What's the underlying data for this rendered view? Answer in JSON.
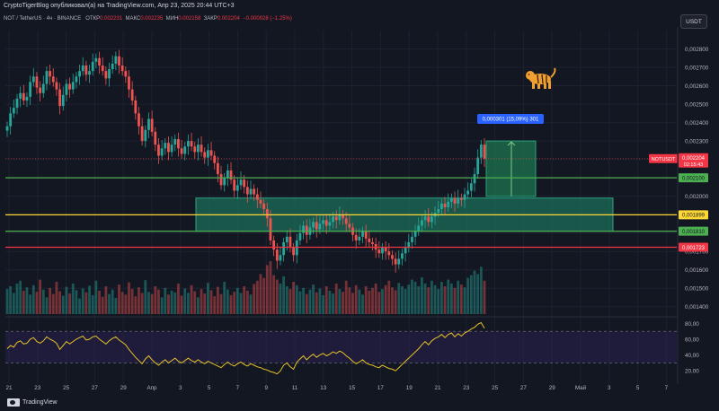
{
  "header": {
    "title": "CryptoTigerBlog опубликовал(а) на TradingView.com, Апр 23, 2025 20:44 UTC+3"
  },
  "info": {
    "symbol": "NOT / TetherUS · 4ч · BINANCE",
    "open_label": "ОТКР",
    "open": "0.002231",
    "high_label": "МАКС",
    "high": "0.002235",
    "low_label": "МИН",
    "low": "0.002158",
    "close_label": "ЗАКР",
    "close": "0.002204",
    "change": "−0.000028 (−1.25%)"
  },
  "currency_button": "USDT",
  "brand": "TradingView",
  "colors": {
    "background": "#131722",
    "up": "#26a69a",
    "down": "#ef5350",
    "green_line": "#4caf50",
    "yellow_line": "#fdd835",
    "red_line": "#f23645",
    "zone": "#1e6e5a",
    "rsi_line": "#e6c229",
    "label_blue": "#2962ff"
  },
  "chart_data": {
    "type": "candlestick",
    "ylim": [
      0.00135,
      0.0029
    ],
    "y_ticks": [
      "0.002800",
      "0.002700",
      "0.002600",
      "0.002500",
      "0.002400",
      "0.002300",
      "0.002200",
      "0.002100",
      "0.002000",
      "0.001900",
      "0.001800",
      "0.001700",
      "0.001600",
      "0.001500",
      "0.001400"
    ],
    "x_ticks": [
      "21",
      "23",
      "25",
      "27",
      "29",
      "Апр",
      "3",
      "5",
      "7",
      "9",
      "11",
      "13",
      "15",
      "17",
      "19",
      "21",
      "23",
      "25",
      "27",
      "29",
      "Май",
      "3",
      "5",
      "7"
    ],
    "horizontal_levels": [
      {
        "value": 0.0021,
        "label": "0,002100",
        "color": "#4caf50"
      },
      {
        "value": 0.001899,
        "label": "0,001899",
        "color": "#fdd835"
      },
      {
        "value": 0.00181,
        "label": "0,001810",
        "color": "#4caf50"
      },
      {
        "value": 0.001723,
        "label": "0,001723",
        "color": "#f23645"
      }
    ],
    "price_label": {
      "symbol": "NOTUSDT",
      "value": "0,002204",
      "timer": "02:15:43"
    },
    "measure_label": "0,000301 (15,09%) 301",
    "zone": {
      "top": 0.00199,
      "bottom": 0.00181
    },
    "rsi": {
      "levels": [
        "80,00",
        "60,00",
        "40,00",
        "20,00"
      ],
      "ylim": [
        10,
        85
      ],
      "band": [
        30,
        70
      ]
    },
    "closes": [
      0.00238,
      0.00245,
      0.00248,
      0.00253,
      0.00256,
      0.00252,
      0.00254,
      0.00262,
      0.00265,
      0.00259,
      0.00256,
      0.00261,
      0.00268,
      0.00265,
      0.00262,
      0.00258,
      0.00249,
      0.00255,
      0.00261,
      0.00258,
      0.00262,
      0.00265,
      0.00268,
      0.00271,
      0.00266,
      0.00268,
      0.00273,
      0.00275,
      0.00271,
      0.00268,
      0.00264,
      0.00269,
      0.00272,
      0.00276,
      0.00271,
      0.00268,
      0.00265,
      0.00258,
      0.00252,
      0.00245,
      0.00238,
      0.0023,
      0.00236,
      0.00242,
      0.00235,
      0.00228,
      0.00222,
      0.00226,
      0.00229,
      0.00224,
      0.00228,
      0.00231,
      0.00226,
      0.00223,
      0.00227,
      0.0023,
      0.00227,
      0.00224,
      0.00228,
      0.00224,
      0.00221,
      0.00225,
      0.00222,
      0.00218,
      0.00212,
      0.00206,
      0.0021,
      0.00214,
      0.00209,
      0.00203,
      0.00206,
      0.00209,
      0.00205,
      0.00201,
      0.00204,
      0.00201,
      0.00198,
      0.00196,
      0.00193,
      0.00188,
      0.00176,
      0.00171,
      0.00165,
      0.00168,
      0.00175,
      0.00178,
      0.00172,
      0.00168,
      0.00176,
      0.0018,
      0.00184,
      0.00179,
      0.00183,
      0.00186,
      0.00182,
      0.00185,
      0.00187,
      0.00184,
      0.00186,
      0.00189,
      0.00187,
      0.0019,
      0.00188,
      0.00185,
      0.00183,
      0.00179,
      0.00176,
      0.00178,
      0.00181,
      0.00177,
      0.00175,
      0.00174,
      0.00171,
      0.00169,
      0.00172,
      0.0017,
      0.00168,
      0.00166,
      0.00163,
      0.00166,
      0.00169,
      0.00172,
      0.00175,
      0.00178,
      0.00181,
      0.00184,
      0.00187,
      0.00189,
      0.00186,
      0.00189,
      0.00191,
      0.00193,
      0.00196,
      0.00194,
      0.00197,
      0.00199,
      0.00196,
      0.00199,
      0.00198,
      0.00201,
      0.00203,
      0.00207,
      0.00212,
      0.00221,
      0.00228,
      0.002204
    ],
    "volumes": [
      0.45,
      0.5,
      0.38,
      0.55,
      0.6,
      0.42,
      0.48,
      0.35,
      0.52,
      0.4,
      0.62,
      0.44,
      0.3,
      0.47,
      0.36,
      0.58,
      0.41,
      0.33,
      0.49,
      0.37,
      0.55,
      0.43,
      0.28,
      0.46,
      0.39,
      0.51,
      0.34,
      0.6,
      0.42,
      0.31,
      0.5,
      0.36,
      0.44,
      0.29,
      0.53,
      0.4,
      0.35,
      0.57,
      0.45,
      0.32,
      0.48,
      0.38,
      0.61,
      0.4,
      0.36,
      0.5,
      0.44,
      0.3,
      0.47,
      0.35,
      0.42,
      0.39,
      0.55,
      0.33,
      0.46,
      0.38,
      0.52,
      0.41,
      0.3,
      0.45,
      0.37,
      0.56,
      0.43,
      0.32,
      0.49,
      0.36,
      0.58,
      0.44,
      0.34,
      0.4,
      0.47,
      0.38,
      0.5,
      0.42,
      0.35,
      0.54,
      0.6,
      0.72,
      0.65,
      0.88,
      0.95,
      0.7,
      0.62,
      0.55,
      0.68,
      0.5,
      0.45,
      0.58,
      0.52,
      0.41,
      0.47,
      0.36,
      0.44,
      0.53,
      0.39,
      0.46,
      0.34,
      0.5,
      0.42,
      0.37,
      0.55,
      0.45,
      0.4,
      0.6,
      0.48,
      0.38,
      0.52,
      0.44,
      0.35,
      0.5,
      0.42,
      0.47,
      0.55,
      0.4,
      0.45,
      0.52,
      0.6,
      0.48,
      0.43,
      0.56,
      0.5,
      0.45,
      0.53,
      0.62,
      0.58,
      0.5,
      0.66,
      0.55,
      0.48,
      0.6,
      0.52,
      0.45,
      0.58,
      0.5,
      0.62,
      0.55,
      0.47,
      0.6,
      0.53,
      0.48,
      0.65,
      0.7,
      0.78,
      0.72,
      0.85,
      0.6
    ],
    "rsi_values": [
      48,
      52,
      50,
      56,
      58,
      54,
      55,
      60,
      62,
      57,
      55,
      58,
      63,
      60,
      58,
      55,
      47,
      52,
      57,
      54,
      57,
      60,
      62,
      64,
      59,
      60,
      63,
      64,
      60,
      57,
      54,
      58,
      61,
      63,
      59,
      56,
      53,
      47,
      42,
      37,
      33,
      29,
      35,
      39,
      34,
      30,
      27,
      31,
      34,
      30,
      33,
      36,
      32,
      30,
      33,
      36,
      33,
      31,
      34,
      31,
      29,
      32,
      30,
      28,
      26,
      24,
      28,
      31,
      28,
      26,
      29,
      31,
      28,
      26,
      29,
      27,
      25,
      24,
      22,
      21,
      19,
      18,
      16,
      20,
      27,
      30,
      25,
      22,
      31,
      35,
      39,
      34,
      38,
      41,
      37,
      40,
      42,
      39,
      41,
      44,
      42,
      45,
      43,
      39,
      36,
      32,
      29,
      31,
      34,
      30,
      28,
      27,
      25,
      24,
      27,
      25,
      23,
      22,
      20,
      24,
      28,
      32,
      36,
      40,
      44,
      48,
      53,
      57,
      53,
      58,
      61,
      63,
      66,
      62,
      66,
      68,
      63,
      67,
      64,
      68,
      70,
      73,
      75,
      79,
      81,
      74
    ]
  }
}
